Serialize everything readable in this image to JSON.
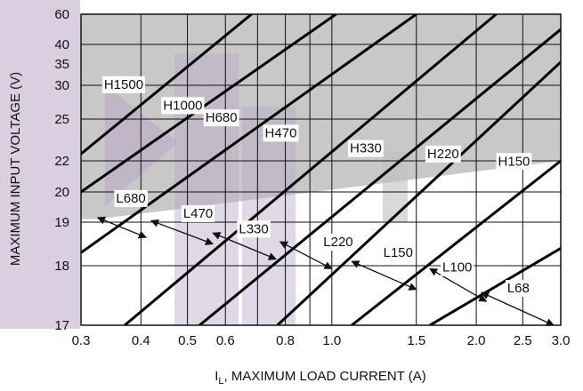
{
  "chart_data": {
    "type": "line",
    "x_scale": "log",
    "y_scale": "custom-nonlinear",
    "xlim": [
      0.3,
      3.0
    ],
    "ylim": [
      17,
      60
    ],
    "grid": true,
    "xlabel": "I_L, MAXIMUM LOAD CURRENT (A)",
    "xlabel_parts": {
      "prefix": "I",
      "subscript": "L",
      "suffix": ", MAXIMUM LOAD CURRENT (A)"
    },
    "ylabel": "MAXIMUM INPUT VOLTAGE (V)",
    "x_ticks": [
      {
        "value": 0.3,
        "label": "0.3"
      },
      {
        "value": 0.4,
        "label": "0.4"
      },
      {
        "value": 0.5,
        "label": "0.5"
      },
      {
        "value": 0.6,
        "label": "0.6"
      },
      {
        "value": 0.8,
        "label": "0.8"
      },
      {
        "value": 1.0,
        "label": "1.0"
      },
      {
        "value": 1.5,
        "label": "1.5"
      },
      {
        "value": 2.0,
        "label": "2.0"
      },
      {
        "value": 2.5,
        "label": "2.5"
      },
      {
        "value": 3.0,
        "label": "3.0"
      }
    ],
    "x_minor_grid": [
      0.7,
      0.9,
      3.0
    ],
    "y_ticks": [
      {
        "value": 17,
        "label": "17"
      },
      {
        "value": 18,
        "label": "18"
      },
      {
        "value": 19,
        "label": "19"
      },
      {
        "value": 20,
        "label": "20"
      },
      {
        "value": 22,
        "label": "22"
      },
      {
        "value": 25,
        "label": "25"
      },
      {
        "value": 30,
        "label": "30"
      },
      {
        "value": 35,
        "label": "35"
      },
      {
        "value": 40,
        "label": "40"
      },
      {
        "value": 60,
        "label": "60"
      }
    ],
    "y_grid": [
      17,
      18,
      19,
      20,
      22,
      25,
      30,
      40,
      60
    ],
    "series": [
      {
        "name": "H1500",
        "points": [
          [
            0.3,
            22.5
          ],
          [
            0.68,
            60
          ]
        ]
      },
      {
        "name": "H1000",
        "points": [
          [
            0.3,
            20.0
          ],
          [
            1.02,
            60
          ]
        ]
      },
      {
        "name": "H680",
        "points": [
          [
            0.3,
            18.3
          ],
          [
            1.5,
            60
          ]
        ]
      },
      {
        "name": "H470",
        "points": [
          [
            0.37,
            17.0
          ],
          [
            2.2,
            60
          ]
        ]
      },
      {
        "name": "H330",
        "points": [
          [
            0.53,
            17.0
          ],
          [
            3.0,
            50
          ]
        ]
      },
      {
        "name": "H220",
        "points": [
          [
            0.77,
            17.0
          ],
          [
            3.0,
            35.5
          ]
        ]
      },
      {
        "name": "H150",
        "points": [
          [
            1.1,
            17.0
          ],
          [
            3.0,
            22.0
          ]
        ]
      },
      {
        "name": "L68",
        "points": [
          [
            1.6,
            17.0
          ],
          [
            3.0,
            18.4
          ]
        ]
      }
    ],
    "regions": [
      {
        "name": "H-region",
        "color": "#c8c8c8",
        "boundary": "above L/H separator (V≈19.1 at 0.33 A to V≈22 at 3.0 A)"
      }
    ],
    "labels": [
      {
        "text": "H1500",
        "x": 0.335,
        "y": 29.5
      },
      {
        "text": "H1000",
        "x": 0.445,
        "y": 26.4
      },
      {
        "text": "H680",
        "x": 0.545,
        "y": 24.8
      },
      {
        "text": "H470",
        "x": 0.725,
        "y": 23.7
      },
      {
        "text": "H330",
        "x": 1.09,
        "y": 22.6
      },
      {
        "text": "H220",
        "x": 1.58,
        "y": 22.2
      },
      {
        "text": "H150",
        "x": 2.22,
        "y": 21.7
      },
      {
        "text": "L680",
        "x": 0.355,
        "y": 19.65
      },
      {
        "text": "L470",
        "x": 0.49,
        "y": 19.15
      },
      {
        "text": "L330",
        "x": 0.64,
        "y": 18.75
      },
      {
        "text": "L220",
        "x": 0.96,
        "y": 18.45
      },
      {
        "text": "L150",
        "x": 1.28,
        "y": 18.2
      },
      {
        "text": "L100",
        "x": 1.7,
        "y": 17.9
      },
      {
        "text": "L68",
        "x": 2.32,
        "y": 17.55
      }
    ],
    "arrows": [
      {
        "name": "L680",
        "from": [
          0.325,
          19.15
        ],
        "to": [
          0.41,
          18.65
        ]
      },
      {
        "name": "L470",
        "from": [
          0.42,
          19.05
        ],
        "to": [
          0.565,
          18.5
        ]
      },
      {
        "name": "L330",
        "from": [
          0.565,
          18.75
        ],
        "to": [
          0.765,
          18.15
        ]
      },
      {
        "name": "L220",
        "from": [
          0.78,
          18.55
        ],
        "to": [
          1.0,
          17.95
        ]
      },
      {
        "name": "L150",
        "from": [
          1.1,
          18.1
        ],
        "to": [
          1.5,
          17.6
        ]
      },
      {
        "name": "L100",
        "from": [
          1.6,
          17.95
        ],
        "to": [
          2.1,
          17.4
        ]
      },
      {
        "name": "L68",
        "from": [
          2.05,
          17.55
        ],
        "to": [
          2.9,
          17.0
        ]
      }
    ],
    "watermark_color": "#b9a8c9"
  }
}
